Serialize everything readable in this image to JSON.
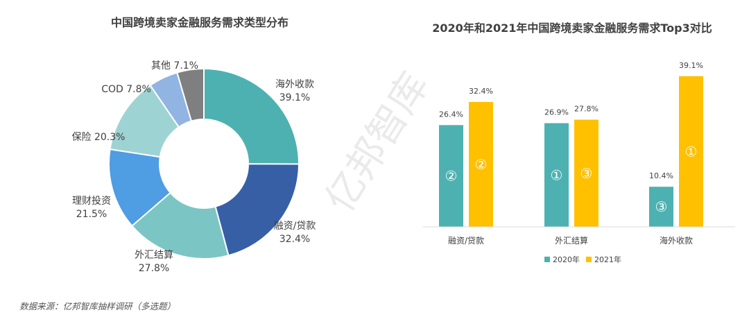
{
  "watermark": "亿邦智库",
  "source_note": "数据来源：亿邦智库抽样调研（多选题）",
  "colors": {
    "teal_2020": "#4db1b1",
    "gold_2021": "#ffc000"
  },
  "chart_data": [
    {
      "type": "pie",
      "title": "中国跨境卖家金融服务需求类型分布",
      "slices": [
        {
          "label": "海外收款",
          "value": 39.1,
          "value_text": "39.1%",
          "color": "#4db1b1"
        },
        {
          "label": "融资/贷款",
          "value": 32.4,
          "value_text": "32.4%",
          "color": "#365fa6"
        },
        {
          "label": "外汇结算",
          "value": 27.8,
          "value_text": "27.8%",
          "color": "#7cc5c5"
        },
        {
          "label": "理财投资",
          "value": 21.5,
          "value_text": "21.5%",
          "color": "#4f9de2"
        },
        {
          "label": "保险",
          "value": 20.3,
          "value_text": "20.3%",
          "color": "#9ed3d3"
        },
        {
          "label": "COD",
          "value": 7.8,
          "value_text": "7.8%",
          "color": "#92b4e3"
        },
        {
          "label": "其他",
          "value": 7.1,
          "value_text": "7.1%",
          "color": "#7f7f7f"
        }
      ]
    },
    {
      "type": "bar",
      "title": "2020年和2021年中国跨境卖家金融服务需求Top3对比",
      "categories": [
        "融资/贷款",
        "外汇结算",
        "海外收款"
      ],
      "series": [
        {
          "name": "2020年",
          "values": [
            26.4,
            26.9,
            10.4
          ],
          "labels": [
            "26.4%",
            "26.9%",
            "10.4%"
          ],
          "ranks": [
            "②",
            "①",
            "③"
          ],
          "color": "#4db1b1"
        },
        {
          "name": "2021年",
          "values": [
            32.4,
            27.8,
            39.1
          ],
          "labels": [
            "32.4%",
            "27.8%",
            "39.1%"
          ],
          "ranks": [
            "②",
            "③",
            "①"
          ],
          "color": "#ffc000"
        }
      ],
      "ylim": [
        0,
        45
      ],
      "legend_position": "bottom"
    }
  ]
}
